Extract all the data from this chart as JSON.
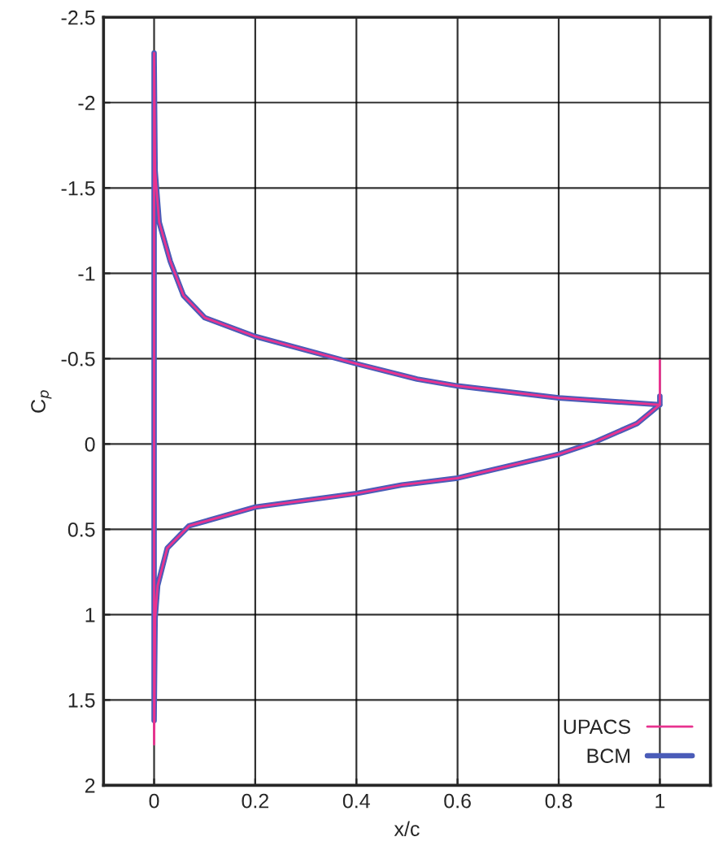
{
  "chart_data": {
    "type": "line",
    "xlabel": "x/c",
    "ylabel": "C$_{p}$",
    "xlim": [
      -0.1,
      1.1
    ],
    "ylim": [
      2,
      -2.5
    ],
    "xticks": [
      0,
      0.2,
      0.4,
      0.6,
      0.8,
      1
    ],
    "yticks": [
      -2.5,
      -2,
      -1.5,
      -1,
      -0.5,
      0,
      0.5,
      1,
      1.5,
      2
    ],
    "grid": true,
    "legend": "bottom right",
    "line_style": "solid",
    "marker": "none",
    "series": [
      {
        "name": "UPACS",
        "color": "#e8338f",
        "x": [
          1,
          1,
          0.8,
          0.6,
          0.52,
          0.4,
          0.2,
          0.1,
          0.058,
          0.032,
          0.01,
          0.002,
          0,
          0,
          0.002,
          0.007,
          0.026,
          0.069,
          0.2,
          0.4,
          0.49,
          0.6,
          0.8,
          0.87,
          0.955,
          1
        ],
        "values": [
          -0.49,
          -0.23,
          -0.27,
          -0.34,
          -0.38,
          -0.47,
          -0.63,
          -0.74,
          -0.87,
          -1.07,
          -1.3,
          -1.6,
          -2.29,
          1.76,
          1.02,
          0.83,
          0.61,
          0.48,
          0.37,
          0.29,
          0.24,
          0.2,
          0.06,
          -0.01,
          -0.12,
          -0.23
        ]
      },
      {
        "name": "BCM",
        "color": "#4a5cb8",
        "x": [
          1,
          1,
          0.8,
          0.6,
          0.52,
          0.4,
          0.2,
          0.1,
          0.058,
          0.032,
          0.01,
          0.002,
          0,
          0,
          0.002,
          0.007,
          0.026,
          0.069,
          0.2,
          0.4,
          0.49,
          0.6,
          0.8,
          0.87,
          0.955,
          1
        ],
        "values": [
          -0.28,
          -0.23,
          -0.27,
          -0.34,
          -0.38,
          -0.47,
          -0.63,
          -0.74,
          -0.87,
          -1.07,
          -1.3,
          -1.6,
          -2.29,
          1.62,
          1.02,
          0.83,
          0.61,
          0.48,
          0.37,
          0.29,
          0.24,
          0.2,
          0.06,
          -0.01,
          -0.12,
          -0.23
        ]
      }
    ]
  }
}
